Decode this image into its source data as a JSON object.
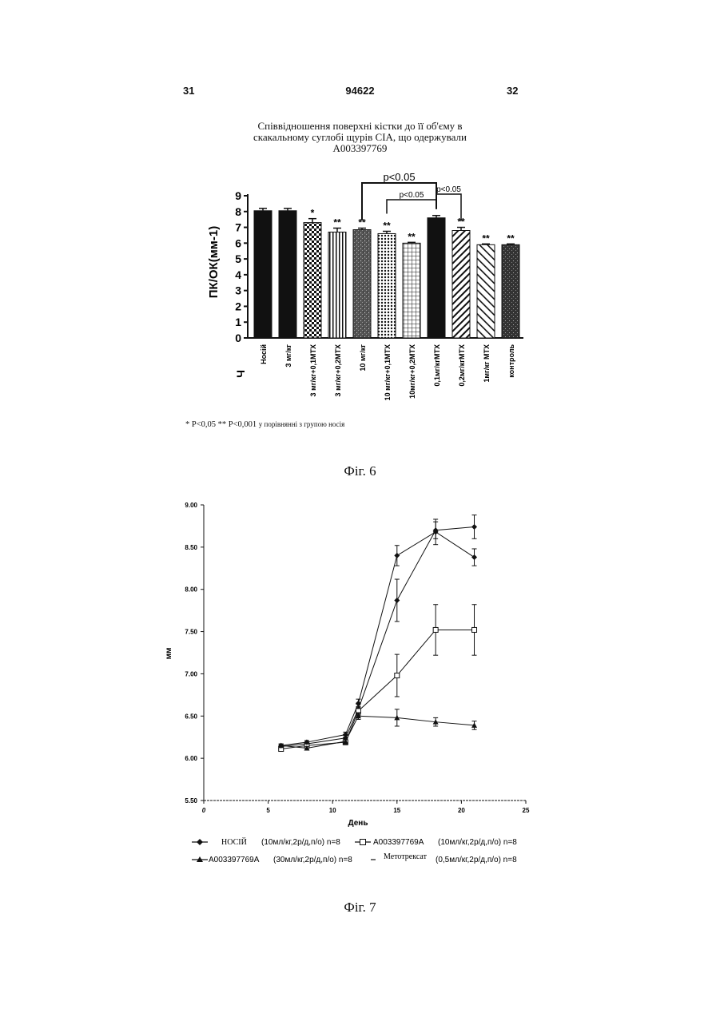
{
  "header": {
    "left": "31",
    "center": "94622",
    "right": "32"
  },
  "fig6": {
    "title_lines": [
      "Співвідношення поверхні кістки до її об'єму в",
      "скакальному суглобі щурів CIA, що одержували",
      "A003397769"
    ],
    "chart_data": {
      "type": "bar",
      "ylabel": "ПК/ОК(мм-1)",
      "ylim": [
        0,
        9
      ],
      "yticks": [
        "0",
        "1",
        "2",
        "3",
        "4",
        "5",
        "6",
        "7",
        "8",
        "9"
      ],
      "axis_mark": "Ч",
      "categories": [
        "Носій",
        "3 мг/кг",
        "3 мг/кг+0,1МТХ",
        "3 мг/кг+0,2МТХ",
        "10 мг/кг",
        "10 мг/кг+0,1МТХ",
        "10мг/кг+0,2МТХ",
        "0,1мг/кгМТХ",
        "0,2мг/кгМТХ",
        "1мг/кг МТХ",
        "контроль"
      ],
      "values": [
        8.05,
        8.05,
        7.3,
        6.7,
        6.85,
        6.6,
        6.0,
        7.6,
        6.8,
        5.9,
        5.9
      ],
      "errors": [
        0.15,
        0.15,
        0.25,
        0.25,
        0.1,
        0.15,
        0.05,
        0.15,
        0.2,
        0.05,
        0.05
      ],
      "patterns": [
        "solid",
        "solid",
        "checker",
        "vlines",
        "speckle",
        "dots",
        "grid",
        "solid",
        "diag",
        "diag2",
        "speckle2"
      ],
      "significance": [
        "",
        "",
        "*",
        "**",
        "**",
        "**",
        "**",
        "",
        "**",
        "**",
        "**"
      ],
      "brackets": [
        {
          "label": "p<0.05",
          "from": 4,
          "to": 7
        },
        {
          "label": "p<0.05",
          "from": 5,
          "to": 7
        },
        {
          "label": "p<0.05",
          "from": 7,
          "to": 8
        }
      ]
    },
    "note_main": "* P<0,05 ** P<0,001",
    "note_small": "у порівнянні з групою носія",
    "caption": "Фіг. 6"
  },
  "fig7": {
    "chart_data": {
      "type": "line",
      "xlabel": "День",
      "ylabel": "мм",
      "xlim": [
        0,
        25
      ],
      "ylim": [
        5.5,
        9.0
      ],
      "xticks": [
        "0",
        "5",
        "10",
        "15",
        "20",
        "25"
      ],
      "yticks": [
        "5.50",
        "6.00",
        "6.50",
        "7.00",
        "7.50",
        "8.00",
        "8.50",
        "9.00"
      ],
      "x": [
        6,
        8,
        11,
        12,
        15,
        18,
        21
      ],
      "series": [
        {
          "name": "НОСІЙ",
          "marker": "diamond",
          "values": [
            6.14,
            6.17,
            6.24,
            6.58,
            7.87,
            8.7,
            8.74
          ],
          "errors": [
            0.02,
            0.02,
            0.03,
            0.06,
            0.25,
            0.1,
            0.14
          ]
        },
        {
          "name": "A003397769A",
          "marker": "square",
          "values": [
            6.11,
            6.15,
            6.19,
            6.56,
            6.98,
            7.52,
            7.52
          ],
          "errors": [
            0.02,
            0.02,
            0.03,
            0.05,
            0.25,
            0.3,
            0.3
          ]
        },
        {
          "name": "A003397769A",
          "marker": "triangle",
          "values": [
            6.15,
            6.12,
            6.2,
            6.5,
            6.48,
            6.43,
            6.39
          ],
          "errors": [
            0.02,
            0.02,
            0.03,
            0.04,
            0.1,
            0.05,
            0.05
          ]
        },
        {
          "name": "Метотрексат",
          "marker": "diamond",
          "values": [
            6.15,
            6.19,
            6.28,
            6.65,
            8.4,
            8.68,
            8.38
          ],
          "errors": [
            0.02,
            0.02,
            0.03,
            0.05,
            0.12,
            0.15,
            0.1
          ]
        }
      ]
    },
    "legend": [
      {
        "name": "НОСІЙ",
        "dose": "(10мл/кг,2р/д,п/о) n=8"
      },
      {
        "name": "A003397769A",
        "dose": "(10мл/кг,2р/д,п/о) n=8"
      },
      {
        "name": "A003397769A",
        "dose": "(30мл/кг,2р/д,п/о) n=8"
      },
      {
        "name": "Метотрексат",
        "dose": "(0,5мл/кг,2р/д,п/о) n=8"
      }
    ],
    "caption": "Фіг. 7"
  }
}
